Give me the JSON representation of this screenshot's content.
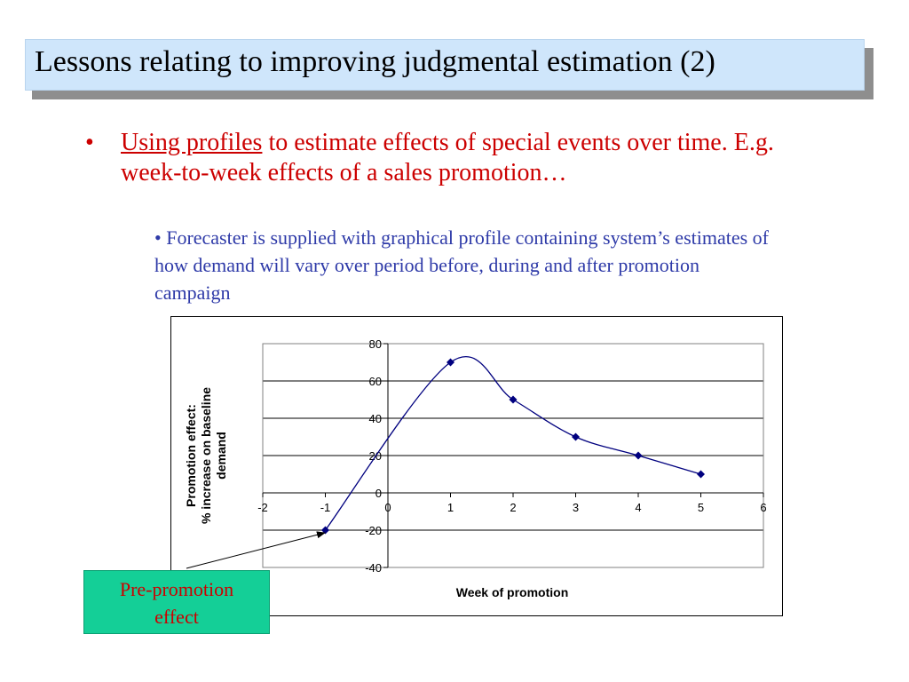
{
  "title": "Lessons relating to improving judgmental estimation (2)",
  "bullet_main": {
    "marker": "•",
    "link_text": "Using profiles",
    "text": " to estimate effects of special events over time. E.g. week-to-week effects of a sales promotion…"
  },
  "bullet_sub": {
    "text": "• Forecaster is supplied with graphical profile containing system’s estimates of how demand will vary over period before, during and after promotion campaign"
  },
  "callout": {
    "line1": "Pre-promotion",
    "line2": "effect"
  },
  "colors": {
    "series": "#00007f",
    "title_bg": "#cfe6fb",
    "callout_bg": "#14cf97",
    "bullet_red": "#cc0000",
    "bullet_blue": "#2e3aa8"
  },
  "chart_data": {
    "type": "line",
    "title": "",
    "xlabel": "Week of promotion",
    "ylabel_lines": [
      "Promotion effect:",
      "% increase on baseline",
      "demand"
    ],
    "xlim": [
      -2,
      6
    ],
    "ylim": [
      -40,
      80
    ],
    "x_ticks": [
      -2,
      -1,
      0,
      1,
      2,
      3,
      4,
      5,
      6
    ],
    "y_ticks": [
      -40,
      -20,
      0,
      20,
      40,
      60,
      80
    ],
    "grid": true,
    "smooth": true,
    "series": [
      {
        "name": "Promotion effect",
        "x": [
          -1,
          1,
          2,
          3,
          4,
          5
        ],
        "y": [
          -20,
          70,
          50,
          30,
          20,
          10
        ]
      }
    ]
  }
}
